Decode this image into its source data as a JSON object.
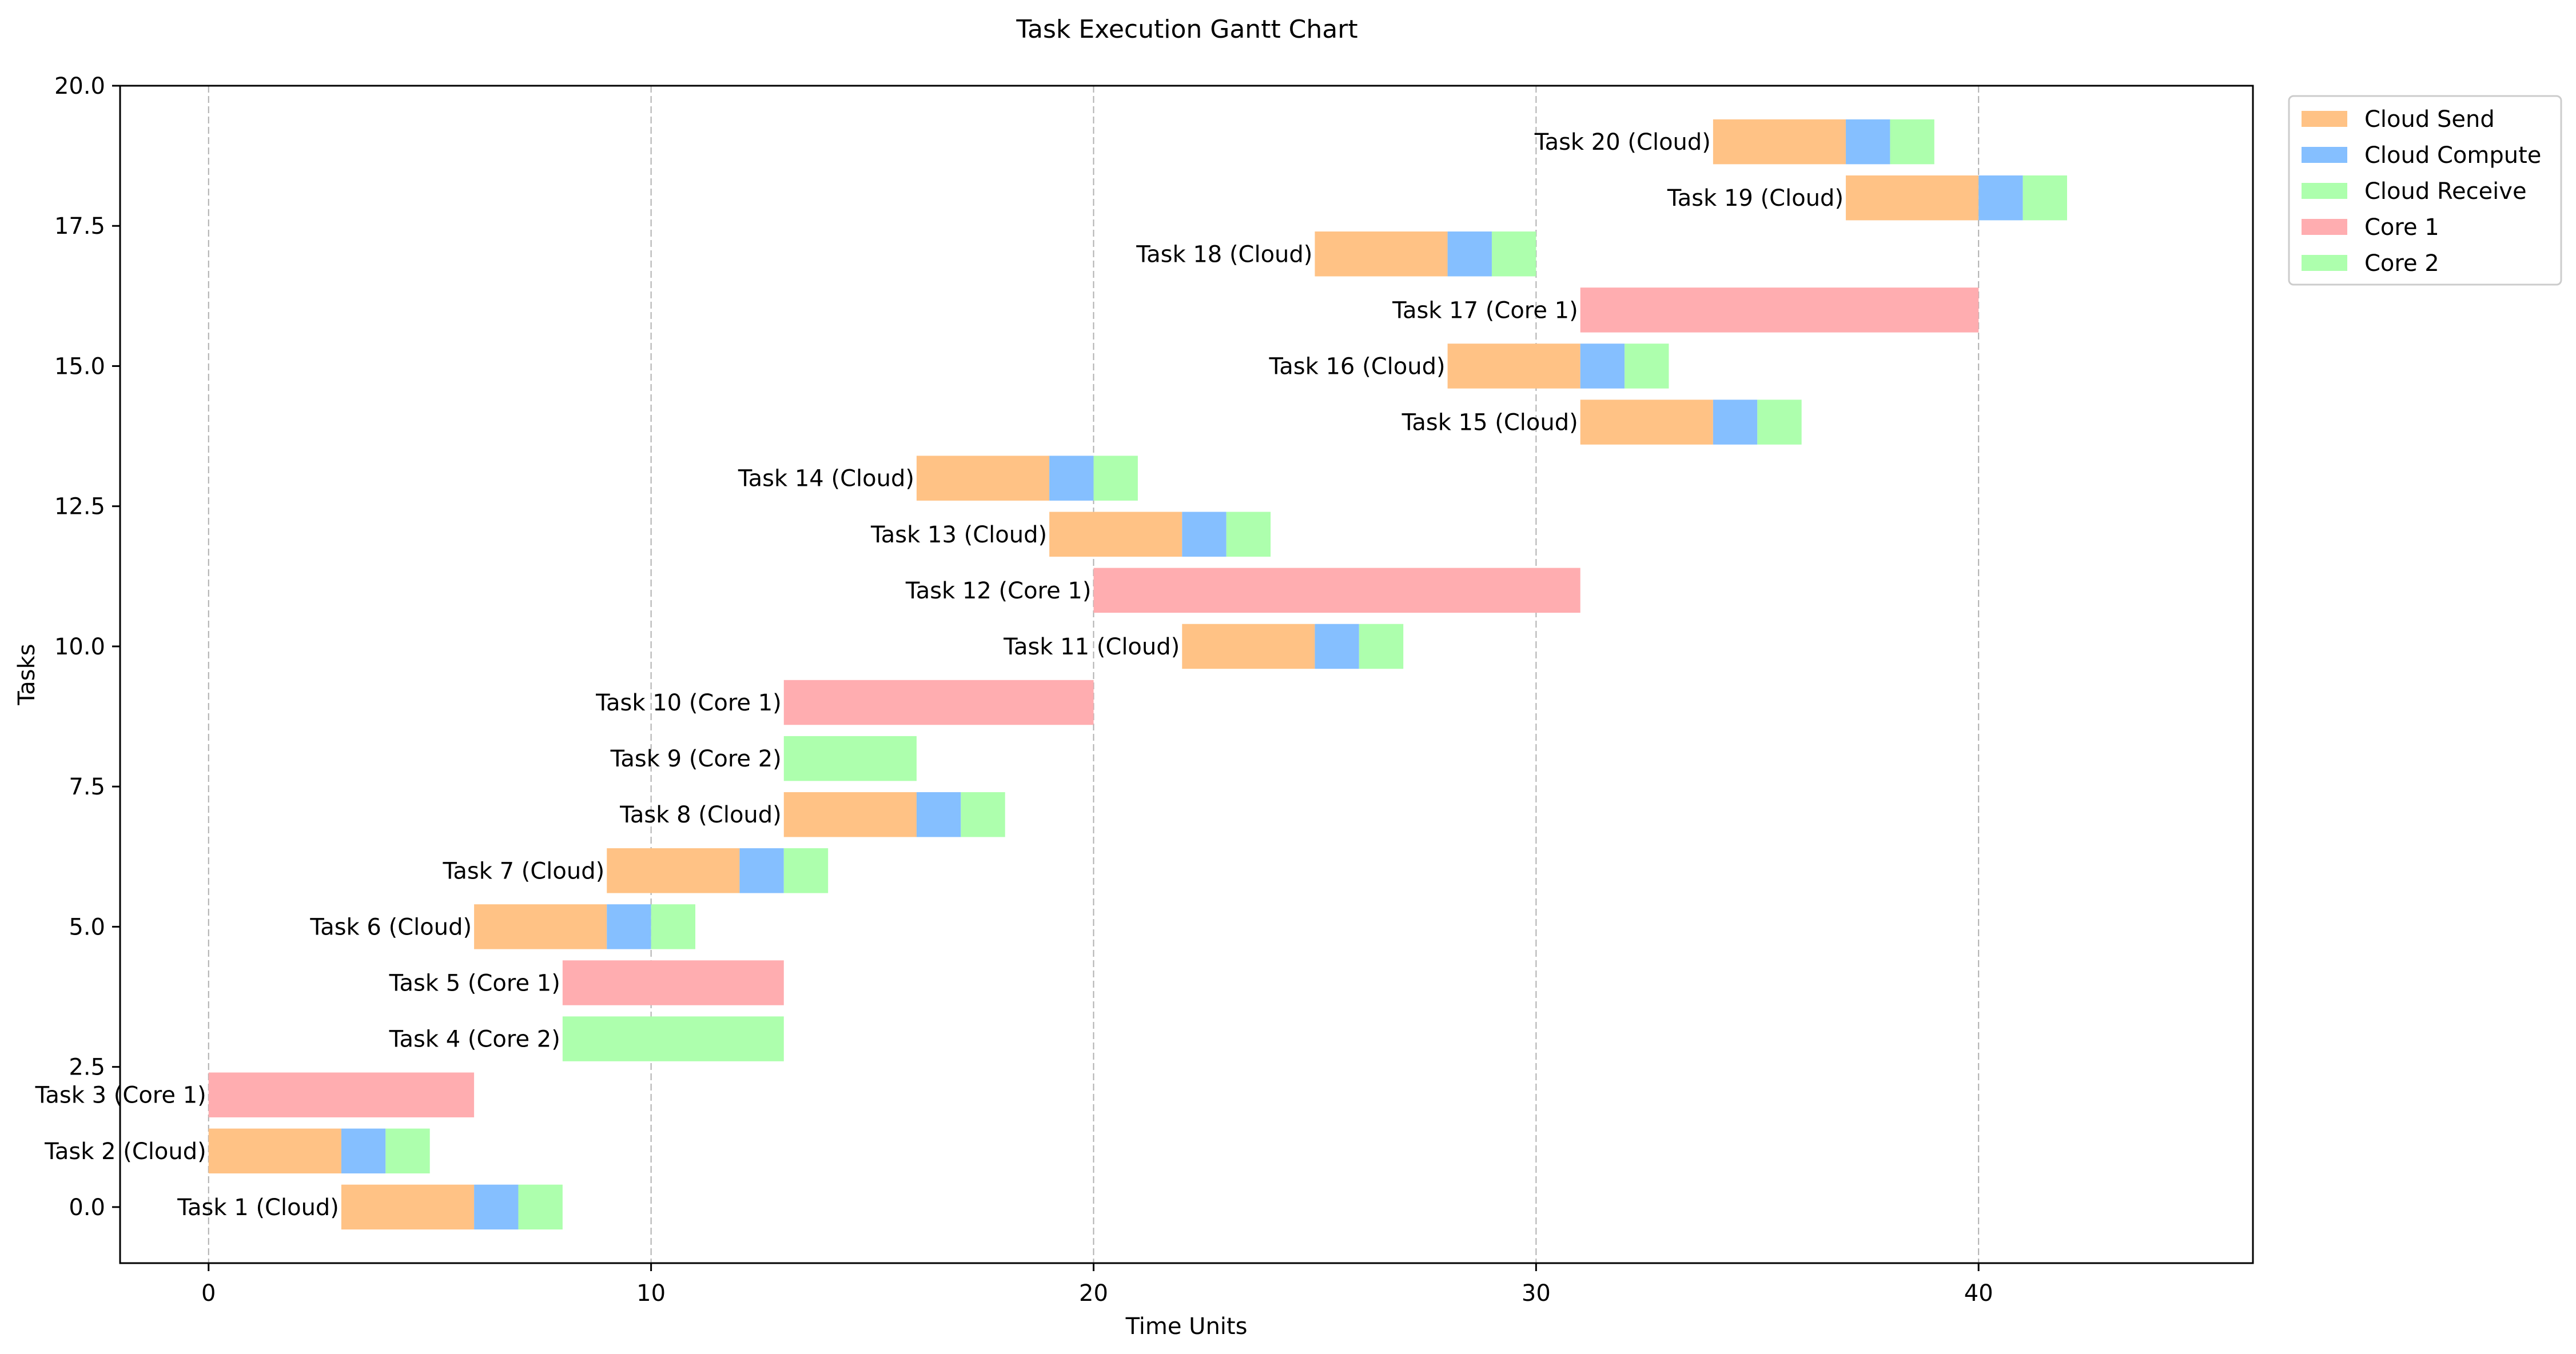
{
  "chart_data": {
    "type": "gantt",
    "title": "Task Execution Gantt Chart",
    "xlabel": "Time Units",
    "ylabel": "Tasks",
    "xlim": [
      -2,
      46.2
    ],
    "ylim": [
      -1,
      20
    ],
    "x_ticks": [
      0,
      10,
      20,
      30,
      40
    ],
    "y_ticks": [
      0.0,
      2.5,
      5.0,
      7.5,
      10.0,
      12.5,
      15.0,
      17.5,
      20.0
    ],
    "y_tick_labels": [
      "0.0",
      "2.5",
      "5.0",
      "7.5",
      "10.0",
      "12.5",
      "15.0",
      "17.5",
      "20.0"
    ],
    "grid": "vertical dashed at x ticks",
    "legend_position": "outside-top-right",
    "colors": {
      "cloud_send": "#ffc285",
      "cloud_compute": "#85bfff",
      "cloud_receive": "#adffad",
      "core1": "#ffadb0",
      "core2": "#adffad"
    },
    "legend": [
      {
        "label": "Cloud Send",
        "color_key": "cloud_send"
      },
      {
        "label": "Cloud Compute",
        "color_key": "cloud_compute"
      },
      {
        "label": "Cloud Receive",
        "color_key": "cloud_receive"
      },
      {
        "label": "Core 1",
        "color_key": "core1"
      },
      {
        "label": "Core 2",
        "color_key": "core2"
      }
    ],
    "tasks": [
      {
        "y": 0,
        "label": "Task 1 (Cloud)",
        "segments": [
          {
            "kind": "cloud_send",
            "start": 3,
            "end": 6
          },
          {
            "kind": "cloud_compute",
            "start": 6,
            "end": 7
          },
          {
            "kind": "cloud_receive",
            "start": 7,
            "end": 8
          }
        ]
      },
      {
        "y": 1,
        "label": "Task 2 (Cloud)",
        "segments": [
          {
            "kind": "cloud_send",
            "start": 0,
            "end": 3
          },
          {
            "kind": "cloud_compute",
            "start": 3,
            "end": 4
          },
          {
            "kind": "cloud_receive",
            "start": 4,
            "end": 5
          }
        ]
      },
      {
        "y": 2,
        "label": "Task 3 (Core 1)",
        "segments": [
          {
            "kind": "core1",
            "start": 0,
            "end": 6
          }
        ]
      },
      {
        "y": 3,
        "label": "Task 4 (Core 2)",
        "segments": [
          {
            "kind": "core2",
            "start": 8,
            "end": 13
          }
        ]
      },
      {
        "y": 4,
        "label": "Task 5 (Core 1)",
        "segments": [
          {
            "kind": "core1",
            "start": 8,
            "end": 13
          }
        ]
      },
      {
        "y": 5,
        "label": "Task 6 (Cloud)",
        "segments": [
          {
            "kind": "cloud_send",
            "start": 6,
            "end": 9
          },
          {
            "kind": "cloud_compute",
            "start": 9,
            "end": 10
          },
          {
            "kind": "cloud_receive",
            "start": 10,
            "end": 11
          }
        ]
      },
      {
        "y": 6,
        "label": "Task 7 (Cloud)",
        "segments": [
          {
            "kind": "cloud_send",
            "start": 9,
            "end": 12
          },
          {
            "kind": "cloud_compute",
            "start": 12,
            "end": 13
          },
          {
            "kind": "cloud_receive",
            "start": 13,
            "end": 14
          }
        ]
      },
      {
        "y": 7,
        "label": "Task 8 (Cloud)",
        "segments": [
          {
            "kind": "cloud_send",
            "start": 13,
            "end": 16
          },
          {
            "kind": "cloud_compute",
            "start": 16,
            "end": 17
          },
          {
            "kind": "cloud_receive",
            "start": 17,
            "end": 18
          }
        ]
      },
      {
        "y": 8,
        "label": "Task 9 (Core 2)",
        "segments": [
          {
            "kind": "core2",
            "start": 13,
            "end": 16
          }
        ]
      },
      {
        "y": 9,
        "label": "Task 10 (Core 1)",
        "segments": [
          {
            "kind": "core1",
            "start": 13,
            "end": 20
          }
        ]
      },
      {
        "y": 10,
        "label": "Task 11 (Cloud)",
        "segments": [
          {
            "kind": "cloud_send",
            "start": 22,
            "end": 25
          },
          {
            "kind": "cloud_compute",
            "start": 25,
            "end": 26
          },
          {
            "kind": "cloud_receive",
            "start": 26,
            "end": 27
          }
        ]
      },
      {
        "y": 11,
        "label": "Task 12 (Core 1)",
        "segments": [
          {
            "kind": "core1",
            "start": 20,
            "end": 31
          }
        ]
      },
      {
        "y": 12,
        "label": "Task 13 (Cloud)",
        "segments": [
          {
            "kind": "cloud_send",
            "start": 19,
            "end": 22
          },
          {
            "kind": "cloud_compute",
            "start": 22,
            "end": 23
          },
          {
            "kind": "cloud_receive",
            "start": 23,
            "end": 24
          }
        ]
      },
      {
        "y": 13,
        "label": "Task 14 (Cloud)",
        "segments": [
          {
            "kind": "cloud_send",
            "start": 16,
            "end": 19
          },
          {
            "kind": "cloud_compute",
            "start": 19,
            "end": 20
          },
          {
            "kind": "cloud_receive",
            "start": 20,
            "end": 21
          }
        ]
      },
      {
        "y": 14,
        "label": "Task 15 (Cloud)",
        "segments": [
          {
            "kind": "cloud_send",
            "start": 31,
            "end": 34
          },
          {
            "kind": "cloud_compute",
            "start": 34,
            "end": 35
          },
          {
            "kind": "cloud_receive",
            "start": 35,
            "end": 36
          }
        ]
      },
      {
        "y": 15,
        "label": "Task 16 (Cloud)",
        "segments": [
          {
            "kind": "cloud_send",
            "start": 28,
            "end": 31
          },
          {
            "kind": "cloud_compute",
            "start": 31,
            "end": 32
          },
          {
            "kind": "cloud_receive",
            "start": 32,
            "end": 33
          }
        ]
      },
      {
        "y": 16,
        "label": "Task 17 (Core 1)",
        "segments": [
          {
            "kind": "core1",
            "start": 31,
            "end": 40
          }
        ]
      },
      {
        "y": 17,
        "label": "Task 18 (Cloud)",
        "segments": [
          {
            "kind": "cloud_send",
            "start": 25,
            "end": 28
          },
          {
            "kind": "cloud_compute",
            "start": 28,
            "end": 29
          },
          {
            "kind": "cloud_receive",
            "start": 29,
            "end": 30
          }
        ]
      },
      {
        "y": 18,
        "label": "Task 19 (Cloud)",
        "segments": [
          {
            "kind": "cloud_send",
            "start": 37,
            "end": 40
          },
          {
            "kind": "cloud_compute",
            "start": 40,
            "end": 41
          },
          {
            "kind": "cloud_receive",
            "start": 41,
            "end": 42
          }
        ]
      },
      {
        "y": 19,
        "label": "Task 20 (Cloud)",
        "segments": [
          {
            "kind": "cloud_send",
            "start": 34,
            "end": 37
          },
          {
            "kind": "cloud_compute",
            "start": 37,
            "end": 38
          },
          {
            "kind": "cloud_receive",
            "start": 38,
            "end": 39
          }
        ]
      }
    ]
  }
}
